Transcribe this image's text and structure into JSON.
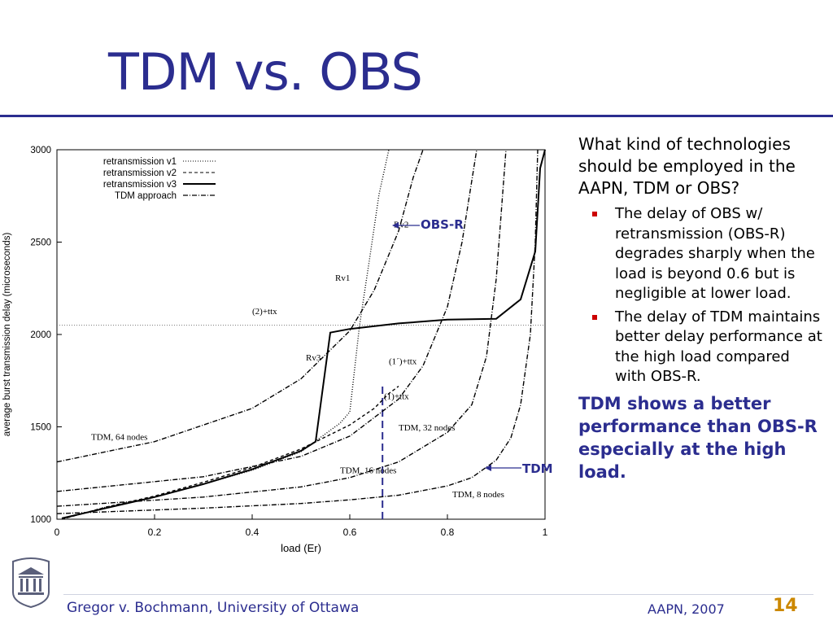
{
  "slide": {
    "title": "TDM vs. OBS",
    "question": "What kind of technologies should be employed in the AAPN, TDM or OBS?",
    "bullets": [
      "The delay of OBS w/ retransmission (OBS-R) degrades sharply when the load is beyond 0.6 but is negligible at lower load.",
      "The delay of TDM maintains better delay performance at the high load compared with OBS-R."
    ],
    "conclusion": "TDM shows a better performance than OBS-R especially at the high load.",
    "callouts": {
      "obsr": "OBS-R",
      "tdm": "TDM"
    }
  },
  "footer": {
    "author": "Gregor v. Bochmann, University of Ottawa",
    "conference": "AAPN, 2007",
    "page": "14"
  },
  "colors": {
    "title": "#2b2d8f",
    "bullet": "#cc0000",
    "page_number": "#cc8800"
  },
  "chart_data": {
    "type": "line",
    "xlabel": "load (Er)",
    "ylabel": "average burst transmission delay (microseconds)",
    "xlim": [
      0,
      1
    ],
    "ylim": [
      1000,
      3000
    ],
    "xticks": [
      "0",
      "0.2",
      "0.4",
      "0.6",
      "0.8",
      "1"
    ],
    "yticks": [
      "1000",
      "1500",
      "2000",
      "2500",
      "3000"
    ],
    "legend_position": "top-left",
    "legend": [
      "retransmission v1",
      "retransmission v2",
      "retransmission v3",
      "TDM approach"
    ],
    "series": [
      {
        "name": "retransmission v1",
        "style": "dotted",
        "points": [
          [
            0.01,
            1000
          ],
          [
            0.1,
            1065
          ],
          [
            0.2,
            1120
          ],
          [
            0.3,
            1190
          ],
          [
            0.4,
            1265
          ],
          [
            0.5,
            1365
          ],
          [
            0.58,
            1520
          ],
          [
            0.6,
            1580
          ],
          [
            0.62,
            2050
          ],
          [
            0.64,
            2400
          ],
          [
            0.66,
            2760
          ],
          [
            0.68,
            3000
          ]
        ]
      },
      {
        "name": "retransmission v2",
        "style": "dashed",
        "points": [
          [
            0.01,
            1000
          ],
          [
            0.1,
            1065
          ],
          [
            0.2,
            1125
          ],
          [
            0.3,
            1200
          ],
          [
            0.4,
            1280
          ],
          [
            0.5,
            1380
          ],
          [
            0.6,
            1510
          ],
          [
            0.65,
            1600
          ],
          [
            0.68,
            1680
          ],
          [
            0.7,
            1720
          ]
        ]
      },
      {
        "name": "retransmission v3",
        "style": "solid",
        "points": [
          [
            0.01,
            1005
          ],
          [
            0.1,
            1060
          ],
          [
            0.2,
            1120
          ],
          [
            0.3,
            1190
          ],
          [
            0.4,
            1270
          ],
          [
            0.5,
            1370
          ],
          [
            0.53,
            1420
          ],
          [
            0.56,
            2010
          ],
          [
            0.6,
            2030
          ],
          [
            0.7,
            2060
          ],
          [
            0.8,
            2080
          ],
          [
            0.9,
            2085
          ],
          [
            0.95,
            2190
          ],
          [
            0.98,
            2450
          ],
          [
            0.99,
            2900
          ],
          [
            1.0,
            3000
          ]
        ]
      },
      {
        "name": "TDM, 64 nodes",
        "style": "dashdot",
        "points": [
          [
            0.0,
            1310
          ],
          [
            0.2,
            1420
          ],
          [
            0.4,
            1600
          ],
          [
            0.5,
            1760
          ],
          [
            0.6,
            2020
          ],
          [
            0.65,
            2240
          ],
          [
            0.7,
            2560
          ],
          [
            0.73,
            2850
          ],
          [
            0.75,
            3000
          ]
        ]
      },
      {
        "name": "TDM, 32 nodes",
        "style": "dashdot",
        "points": [
          [
            0.0,
            1150
          ],
          [
            0.3,
            1230
          ],
          [
            0.5,
            1340
          ],
          [
            0.6,
            1450
          ],
          [
            0.7,
            1650
          ],
          [
            0.75,
            1830
          ],
          [
            0.8,
            2150
          ],
          [
            0.83,
            2500
          ],
          [
            0.86,
            3000
          ]
        ]
      },
      {
        "name": "TDM, 16 nodes",
        "style": "dashdot",
        "points": [
          [
            0.0,
            1070
          ],
          [
            0.3,
            1120
          ],
          [
            0.5,
            1175
          ],
          [
            0.6,
            1225
          ],
          [
            0.7,
            1310
          ],
          [
            0.8,
            1470
          ],
          [
            0.85,
            1620
          ],
          [
            0.88,
            1880
          ],
          [
            0.9,
            2300
          ],
          [
            0.92,
            3000
          ]
        ]
      },
      {
        "name": "TDM, 8 nodes",
        "style": "dashdot",
        "points": [
          [
            0.0,
            1030
          ],
          [
            0.3,
            1060
          ],
          [
            0.5,
            1085
          ],
          [
            0.6,
            1105
          ],
          [
            0.7,
            1130
          ],
          [
            0.8,
            1180
          ],
          [
            0.85,
            1225
          ],
          [
            0.9,
            1320
          ],
          [
            0.93,
            1440
          ],
          [
            0.95,
            1620
          ],
          [
            0.97,
            2000
          ],
          [
            0.98,
            2500
          ],
          [
            0.985,
            3000
          ]
        ]
      }
    ],
    "reference_lines": [
      {
        "type": "horizontal",
        "y": 2050,
        "style": "dotted"
      },
      {
        "type": "vertical",
        "x": 0.667,
        "style": "dashed",
        "color": "#2b2d8f"
      }
    ],
    "annotations": [
      {
        "text": "Rv2",
        "x": 0.69,
        "y": 2580
      },
      {
        "text": "Rv1",
        "x": 0.57,
        "y": 2290
      },
      {
        "text": "(2)+ttx",
        "x": 0.4,
        "y": 2110
      },
      {
        "text": "Rv3",
        "x": 0.51,
        "y": 1860
      },
      {
        "text": "(1´)+ttx",
        "x": 0.68,
        "y": 1840
      },
      {
        "text": "(1)+ttx",
        "x": 0.67,
        "y": 1650
      },
      {
        "text": "TDM, 64 nodes",
        "x": 0.07,
        "y": 1430
      },
      {
        "text": "TDM, 32 nodes",
        "x": 0.7,
        "y": 1480
      },
      {
        "text": "TDM, 16 nodes",
        "x": 0.58,
        "y": 1250
      },
      {
        "text": "TDM, 8 nodes",
        "x": 0.81,
        "y": 1120
      }
    ]
  }
}
